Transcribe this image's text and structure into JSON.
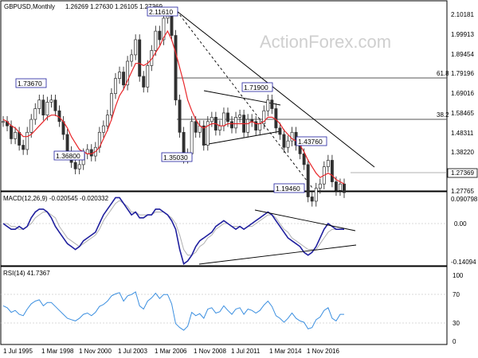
{
  "chart_data": {
    "type": "candlestick",
    "panels": {
      "price": {
        "title": "GBPUSD,Monthly",
        "ohlc": [
          "1.26269",
          "1.27630",
          "1.26105",
          "1.27369"
        ],
        "price_ticks": [
          "2.10181",
          "1.99913",
          "1.89454",
          "1.79196",
          "1.69016",
          "1.58465",
          "1.48311",
          "1.38220",
          "1.27765"
        ],
        "current_price": "1.27369",
        "level_labels": [
          "61.8",
          "38.2"
        ],
        "box_labels": [
          "2.11610",
          "1.73670",
          "1.36800",
          "1.35030",
          "1.71900",
          "1.43760",
          "1.19460"
        ],
        "watermark": "ActionForex.com",
        "series": [
          {
            "name": "close",
            "values": [
              1.6,
              1.58,
              1.52,
              1.55,
              1.49,
              1.47,
              1.55,
              1.61,
              1.66,
              1.7,
              1.63,
              1.69,
              1.7,
              1.65,
              1.6,
              1.54,
              1.46,
              1.41,
              1.38,
              1.4,
              1.45,
              1.47,
              1.44,
              1.48,
              1.55,
              1.58,
              1.63,
              1.73,
              1.8,
              1.83,
              1.77,
              1.88,
              1.91,
              1.98,
              1.81,
              1.76,
              1.86,
              1.93,
              2.02,
              1.98,
              2.08,
              2.09,
              2.0,
              1.7,
              1.55,
              1.43,
              1.45,
              1.6,
              1.55,
              1.58,
              1.49,
              1.6,
              1.62,
              1.56,
              1.58,
              1.64,
              1.6,
              1.57,
              1.62,
              1.63,
              1.55,
              1.61,
              1.6,
              1.56,
              1.59,
              1.65,
              1.7,
              1.66,
              1.57,
              1.54,
              1.48,
              1.51,
              1.55,
              1.49,
              1.45,
              1.4,
              1.25,
              1.23,
              1.29,
              1.31,
              1.39,
              1.42,
              1.32,
              1.28,
              1.31,
              1.27
            ]
          },
          {
            "name": "MA",
            "values": [
              1.61,
              1.6,
              1.58,
              1.57,
              1.55,
              1.53,
              1.53,
              1.54,
              1.56,
              1.58,
              1.6,
              1.62,
              1.63,
              1.63,
              1.62,
              1.6,
              1.57,
              1.53,
              1.5,
              1.47,
              1.46,
              1.45,
              1.45,
              1.46,
              1.48,
              1.52,
              1.56,
              1.61,
              1.67,
              1.72,
              1.75,
              1.79,
              1.83,
              1.87,
              1.87,
              1.86,
              1.87,
              1.89,
              1.92,
              1.95,
              1.99,
              2.02,
              1.98,
              1.92,
              1.85,
              1.78,
              1.7,
              1.65,
              1.61,
              1.58,
              1.57,
              1.58,
              1.59,
              1.59,
              1.58,
              1.58,
              1.59,
              1.59,
              1.59,
              1.59,
              1.59,
              1.59,
              1.6,
              1.59,
              1.59,
              1.6,
              1.62,
              1.62,
              1.61,
              1.59,
              1.56,
              1.54,
              1.52,
              1.51,
              1.49,
              1.46,
              1.42,
              1.39,
              1.36,
              1.34,
              1.35,
              1.36,
              1.35,
              1.33,
              1.32,
              1.31
            ]
          }
        ]
      },
      "macd": {
        "title": "MACD(12,26,9) -0.020545 -0.020332",
        "ticks": [
          "0.090798",
          "0.00",
          "-0.14094"
        ],
        "series": [
          {
            "name": "MACD",
            "values": [
              0.0,
              -0.01,
              -0.02,
              -0.02,
              -0.01,
              -0.02,
              -0.01,
              0.02,
              0.04,
              0.05,
              0.05,
              0.04,
              0.02,
              -0.01,
              -0.03,
              -0.05,
              -0.07,
              -0.08,
              -0.09,
              -0.08,
              -0.06,
              -0.05,
              -0.04,
              -0.03,
              0.0,
              0.03,
              0.05,
              0.07,
              0.09,
              0.09,
              0.07,
              0.05,
              0.03,
              0.04,
              0.02,
              0.02,
              0.03,
              0.03,
              0.05,
              0.05,
              0.04,
              0.03,
              0.01,
              -0.02,
              -0.09,
              -0.14,
              -0.13,
              -0.11,
              -0.08,
              -0.06,
              -0.05,
              -0.04,
              -0.03,
              -0.01,
              0.0,
              0.01,
              0.0,
              -0.01,
              -0.02,
              -0.01,
              -0.02,
              -0.01,
              0.0,
              0.01,
              0.02,
              0.03,
              0.04,
              0.03,
              0.01,
              -0.01,
              -0.03,
              -0.05,
              -0.06,
              -0.07,
              -0.08,
              -0.1,
              -0.11,
              -0.1,
              -0.08,
              -0.05,
              -0.02,
              0.0,
              -0.01,
              -0.02,
              -0.02,
              -0.02
            ]
          },
          {
            "name": "Signal",
            "values": [
              0.0,
              0.0,
              -0.01,
              -0.01,
              -0.02,
              -0.02,
              -0.01,
              0.0,
              0.02,
              0.03,
              0.04,
              0.04,
              0.03,
              0.02,
              -0.01,
              -0.03,
              -0.05,
              -0.06,
              -0.07,
              -0.08,
              -0.07,
              -0.06,
              -0.05,
              -0.04,
              -0.02,
              0.01,
              0.03,
              0.05,
              0.07,
              0.08,
              0.07,
              0.06,
              0.04,
              0.04,
              0.03,
              0.03,
              0.03,
              0.03,
              0.04,
              0.04,
              0.04,
              0.03,
              0.02,
              0.0,
              -0.04,
              -0.09,
              -0.11,
              -0.11,
              -0.1,
              -0.08,
              -0.07,
              -0.05,
              -0.04,
              -0.02,
              -0.01,
              0.0,
              0.0,
              -0.01,
              -0.01,
              -0.01,
              -0.02,
              -0.01,
              -0.01,
              0.0,
              0.01,
              0.02,
              0.03,
              0.03,
              0.02,
              0.0,
              -0.02,
              -0.03,
              -0.05,
              -0.06,
              -0.07,
              -0.08,
              -0.09,
              -0.09,
              -0.09,
              -0.07,
              -0.05,
              -0.03,
              -0.02,
              -0.02,
              -0.02,
              -0.02
            ]
          }
        ]
      },
      "rsi": {
        "title": "RSI(14) 41.7367",
        "ticks": [
          "100",
          "70",
          "30",
          "0"
        ],
        "series": [
          {
            "name": "RSI",
            "values": [
              55,
              52,
              45,
              48,
              42,
              40,
              50,
              58,
              62,
              64,
              55,
              60,
              60,
              54,
              48,
              42,
              36,
              34,
              32,
              36,
              42,
              44,
              40,
              45,
              54,
              57,
              62,
              70,
              73,
              75,
              62,
              70,
              72,
              76,
              55,
              50,
              62,
              67,
              74,
              66,
              72,
              72,
              58,
              28,
              22,
              18,
              24,
              45,
              40,
              43,
              36,
              50,
              52,
              44,
              46,
              55,
              48,
              42,
              50,
              52,
              42,
              50,
              48,
              44,
              48,
              56,
              62,
              54,
              40,
              36,
              30,
              36,
              44,
              36,
              32,
              30,
              20,
              22,
              34,
              38,
              48,
              52,
              36,
              32,
              42,
              42
            ]
          }
        ]
      }
    },
    "x_tick_labels": [
      "1 Jul 1995",
      "1 Mar 1998",
      "1 Nov 2000",
      "1 Jul 2003",
      "1 Mar 2006",
      "1 Nov 2008",
      "1 Jul 2011",
      "1 Mar 2014",
      "1 Nov 2016"
    ]
  },
  "colors": {
    "candle": "#303030",
    "ma": "#e8262a",
    "macd": "#1f1f9e",
    "signal": "#b0b0b0",
    "rsi": "#3b8fe0",
    "trend": "#000000",
    "level": "#555555",
    "grid": "#cccccc"
  }
}
